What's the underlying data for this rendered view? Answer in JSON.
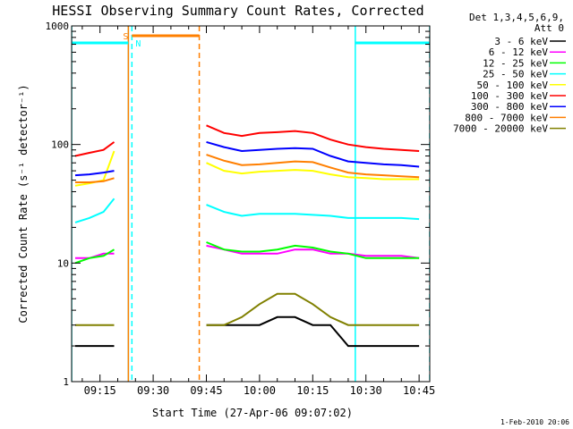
{
  "title": "HESSI Observing Summary Count Rates, Corrected",
  "xlabel": "Start Time (27-Apr-06 09:07:02)",
  "ylabel": "Corrected Count Rate (s⁻¹ detector⁻¹)",
  "footer_date": "1-Feb-2010 20:06",
  "legend": {
    "header": [
      "Det 1,3,4,5,6,9,",
      "Att 0"
    ]
  },
  "colors": {
    "s_marker": "#ff7f00",
    "n_marker": "#00ffff"
  },
  "chart_data": {
    "type": "line",
    "title": "HESSI Observing Summary Count Rates, Corrected",
    "xlabel": "Start Time (27-Apr-06 09:07:02)",
    "ylabel": "Corrected Count Rate (s⁻¹ detector⁻¹)",
    "x_unit": "time of day (HH:MM), 27-Apr-06",
    "xlim": [
      "09:07",
      "10:48"
    ],
    "ylim": [
      1,
      1000
    ],
    "yscale": "log",
    "grid": false,
    "legend_placement": "right",
    "x_ticks": [
      "09:15",
      "09:30",
      "09:45",
      "10:00",
      "10:15",
      "10:30",
      "10:45"
    ],
    "y_ticks": [
      {
        "value": 1,
        "label": "1"
      },
      {
        "value": 10,
        "label": "10"
      },
      {
        "value": 100,
        "label": "100"
      },
      {
        "value": 1000,
        "label": "1000"
      }
    ],
    "x": [
      "09:08",
      "09:12",
      "09:16",
      "09:19",
      "09:22",
      "09:44",
      "09:45",
      "09:50",
      "09:55",
      "10:00",
      "10:05",
      "10:10",
      "10:15",
      "10:20",
      "10:25",
      "10:30",
      "10:35",
      "10:40",
      "10:45"
    ],
    "series": [
      {
        "name": "3 - 6 keV",
        "color": "#000000",
        "values": [
          2,
          2,
          2,
          2,
          null,
          null,
          3,
          3,
          3,
          3,
          3.5,
          3.5,
          3,
          3,
          2,
          2,
          2,
          2,
          2
        ]
      },
      {
        "name": "6 - 12 keV",
        "color": "#ff00ff",
        "values": [
          11,
          11,
          12,
          12,
          null,
          null,
          14,
          13,
          12,
          12,
          12,
          13,
          13,
          12,
          12,
          11.5,
          11.5,
          11.5,
          11
        ]
      },
      {
        "name": "12 - 25 keV",
        "color": "#00ff00",
        "values": [
          10,
          11,
          11.5,
          13,
          null,
          null,
          15,
          13,
          12.5,
          12.5,
          13,
          14,
          13.5,
          12.5,
          12,
          11,
          11,
          11,
          11
        ]
      },
      {
        "name": "25 - 50 keV",
        "color": "#00ffff",
        "values": [
          22,
          24,
          27,
          35,
          null,
          null,
          31,
          27,
          25,
          26,
          26,
          26,
          25.5,
          25,
          24,
          24,
          24,
          24,
          23.5
        ]
      },
      {
        "name": "50 - 100 keV",
        "color": "#ffff00",
        "values": [
          45,
          47,
          50,
          88,
          null,
          null,
          70,
          60,
          57,
          59,
          60,
          61,
          60,
          56,
          53,
          52,
          51,
          51,
          51
        ]
      },
      {
        "name": "100 - 300 keV",
        "color": "#ff0000",
        "values": [
          80,
          85,
          90,
          105,
          null,
          null,
          145,
          125,
          118,
          125,
          127,
          130,
          125,
          110,
          100,
          95,
          92,
          90,
          88
        ]
      },
      {
        "name": "300 - 800 keV",
        "color": "#0000ff",
        "values": [
          55,
          56,
          58,
          60,
          null,
          null,
          105,
          95,
          88,
          90,
          92,
          93,
          92,
          80,
          72,
          70,
          68,
          67,
          65
        ]
      },
      {
        "name": "800 - 7000 keV",
        "color": "#ff7f00",
        "values": [
          48,
          48,
          49,
          52,
          null,
          null,
          82,
          73,
          67,
          68,
          70,
          72,
          71,
          64,
          58,
          56,
          55,
          54,
          53
        ]
      },
      {
        "name": "7000 - 20000 keV",
        "color": "#808000",
        "values": [
          3,
          3,
          3,
          3,
          null,
          null,
          3,
          3,
          3.5,
          4.5,
          5.5,
          5.5,
          4.5,
          3.5,
          3,
          3,
          3,
          3,
          3
        ]
      }
    ],
    "flags": [
      {
        "label": "S",
        "color": "#ff7f00",
        "start": "09:24",
        "end": "09:43"
      },
      {
        "label": "N",
        "color": "#00ffff",
        "start": "09:07",
        "end": "09:23"
      },
      {
        "label": "",
        "color": "#00ffff",
        "start": "10:27",
        "end": "10:48"
      }
    ],
    "vertical_markers": [
      {
        "x": "09:07",
        "color": "#00ffff",
        "style": "solid"
      },
      {
        "x": "09:23",
        "color": "#00ffff",
        "style": "solid"
      },
      {
        "x": "09:24",
        "color": "#00ffff",
        "style": "dashed"
      },
      {
        "x": "09:23",
        "color": "#ff7f00",
        "style": "solid"
      },
      {
        "x": "09:43",
        "color": "#ff7f00",
        "style": "dashed"
      },
      {
        "x": "10:27",
        "color": "#00ffff",
        "style": "solid"
      },
      {
        "x": "10:48",
        "color": "#00ffff",
        "style": "dashed"
      }
    ]
  }
}
